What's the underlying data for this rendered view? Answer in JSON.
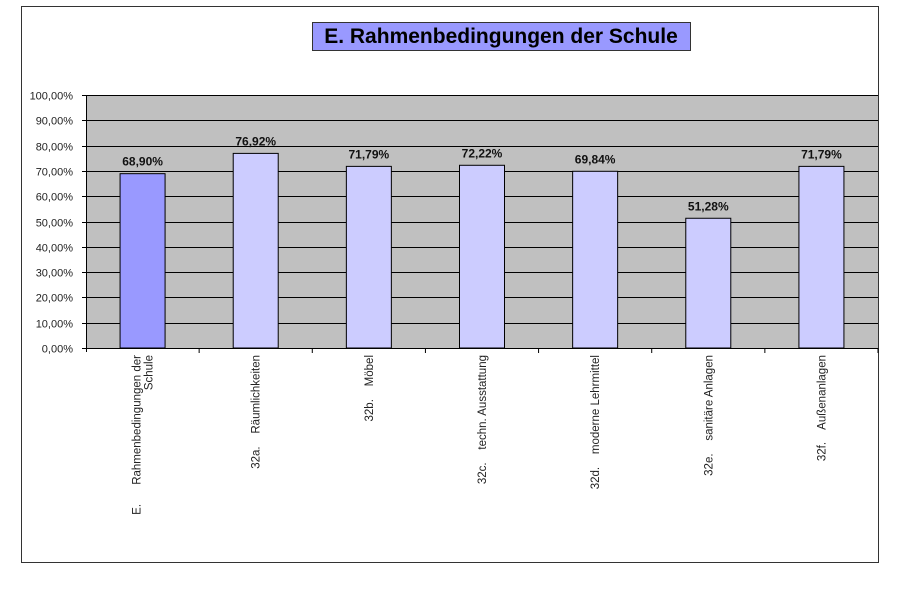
{
  "chart_data": {
    "type": "bar",
    "title": "E. Rahmenbedingungen der Schule",
    "xlabel": "",
    "ylabel": "",
    "ylim": [
      0,
      100
    ],
    "grid": true,
    "y_ticks": [
      "0,00%",
      "10,00%",
      "20,00%",
      "30,00%",
      "40,00%",
      "50,00%",
      "60,00%",
      "70,00%",
      "80,00%",
      "90,00%",
      "100,00%"
    ],
    "categories": [
      [
        "E.      Rahmenbedingungen der",
        "Schule"
      ],
      [
        "32a.    Räumlichkeiten"
      ],
      [
        "32b.    Möbel"
      ],
      [
        "32c.    techn. Ausstattung"
      ],
      [
        "32d.    moderne Lehrmittel"
      ],
      [
        "32e.    sanitäre Anlagen"
      ],
      [
        "32f.    Außenanlagen"
      ]
    ],
    "values": [
      68.9,
      76.92,
      71.79,
      72.22,
      69.84,
      51.28,
      71.79
    ],
    "data_labels": [
      "68,90%",
      "76,92%",
      "71,79%",
      "72,22%",
      "69,84%",
      "51,28%",
      "71,79%"
    ],
    "colors": {
      "highlight": "#9999ff",
      "bar": "#ccccff",
      "plot_bg": "#c0c0c0",
      "title_bg": "#9999ff"
    }
  }
}
